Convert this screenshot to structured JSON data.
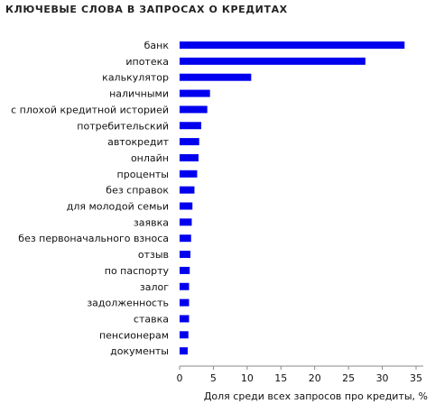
{
  "chart_data": {
    "type": "bar",
    "orientation": "horizontal",
    "title": "КЛЮЧЕВЫЕ СЛОВА В ЗАПРОСАХ О КРЕДИТАХ",
    "xlabel": "Доля среди всех запросов про кредиты, %",
    "ylabel": "",
    "xlim": [
      0,
      35
    ],
    "xticks": [
      "0",
      "5",
      "10",
      "15",
      "20",
      "25",
      "30",
      "35"
    ],
    "grid": false,
    "bar_color": "#0000ee",
    "categories": [
      "банк",
      "ипотека",
      "калькулятор",
      "наличными",
      "с плохой кредитной историей",
      "потребительский",
      "автокредит",
      "онлайн",
      "проценты",
      "без справок",
      "для молодой семьи",
      "заявка",
      "без первоначального взноса",
      "отзыв",
      "по паспорту",
      "залог",
      "задолженность",
      "ставка",
      "пенсионерам",
      "документы"
    ],
    "values": [
      33.3,
      27.5,
      10.6,
      4.5,
      4.1,
      3.2,
      2.9,
      2.8,
      2.6,
      2.2,
      1.9,
      1.8,
      1.7,
      1.6,
      1.5,
      1.4,
      1.4,
      1.4,
      1.3,
      1.2
    ]
  }
}
